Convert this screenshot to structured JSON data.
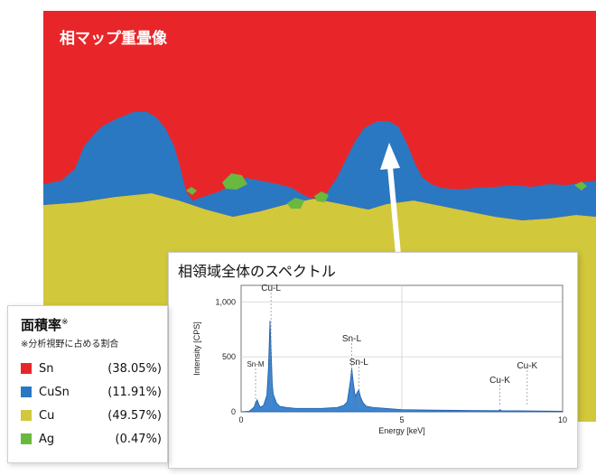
{
  "phase_map": {
    "title": "相マップ重畳像",
    "colors": {
      "Sn": "#e8262a",
      "CuSn": "#2a78c2",
      "Cu": "#d2c83c",
      "Ag": "#6ab83e"
    }
  },
  "spectrum_panel": {
    "title": "相領域全体のスペクトル"
  },
  "legend": {
    "title": "面積率",
    "title_mark": "※",
    "note": "※分析視野に占める割合",
    "items": [
      {
        "name": "Sn",
        "value": "(38.05%)",
        "color": "#e8262a"
      },
      {
        "name": "CuSn",
        "value": "(11.91%)",
        "color": "#2a78c2"
      },
      {
        "name": "Cu",
        "value": "(49.57%)",
        "color": "#d2c83c"
      },
      {
        "name": "Ag",
        "value": "(0.47%)",
        "color": "#6ab83e"
      }
    ]
  },
  "chart_data": {
    "type": "line",
    "title": "",
    "xlabel": "Energy [keV]",
    "ylabel": "Intensity [CPS]",
    "xlim": [
      0,
      10
    ],
    "ylim": [
      0,
      1150
    ],
    "x_ticks": [
      0,
      5,
      10
    ],
    "y_ticks": [
      0,
      500,
      1000
    ],
    "y_tick_labels": [
      "0",
      "500",
      "1,000"
    ],
    "series": [
      {
        "x": [
          0.0,
          0.25,
          0.4,
          0.45,
          0.5,
          0.55,
          0.6,
          0.7,
          0.8,
          0.85,
          0.9,
          0.93,
          0.97,
          1.0,
          1.05,
          1.1,
          1.2,
          1.4,
          1.7,
          2.0,
          2.5,
          3.0,
          3.2,
          3.3,
          3.4,
          3.44,
          3.48,
          3.55,
          3.6,
          3.66,
          3.72,
          3.8,
          3.9,
          4.1,
          4.5,
          5.0,
          6.0,
          7.0,
          8.0,
          8.05,
          8.1,
          9.0,
          10.0
        ],
        "y": [
          0,
          5,
          40,
          80,
          110,
          70,
          40,
          60,
          150,
          400,
          830,
          600,
          250,
          160,
          120,
          80,
          50,
          40,
          30,
          30,
          30,
          40,
          60,
          90,
          280,
          400,
          290,
          140,
          170,
          200,
          130,
          80,
          50,
          40,
          30,
          20,
          15,
          12,
          10,
          20,
          10,
          8,
          5
        ]
      }
    ],
    "annotations": [
      {
        "text": "Cu-L",
        "x": 0.93
      },
      {
        "text": "Sn-M",
        "x": 0.45
      },
      {
        "text": "Sn-L",
        "x": 3.44
      },
      {
        "text": "Sn-L",
        "x": 3.66
      },
      {
        "text": "Cu-K",
        "x": 8.05
      },
      {
        "text": "Cu-K",
        "x": 8.9
      }
    ]
  }
}
